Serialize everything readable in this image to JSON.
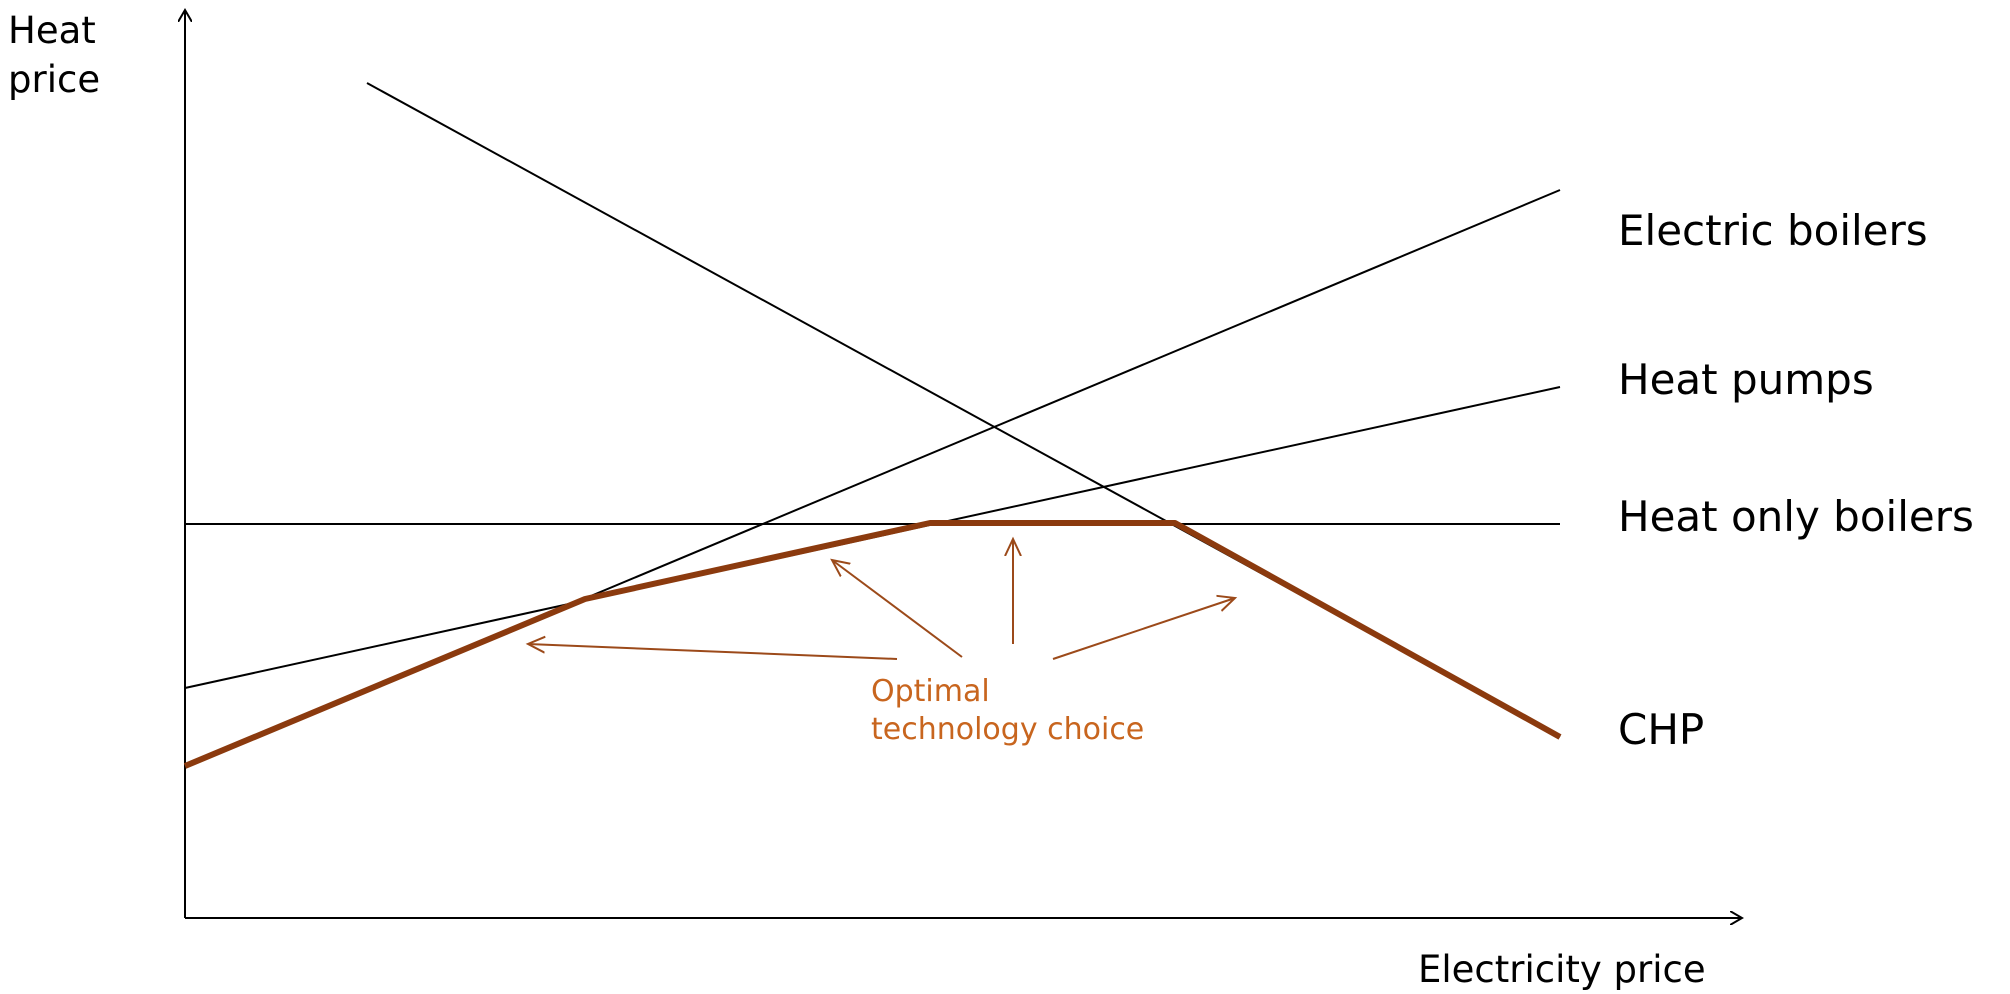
{
  "axes": {
    "y_label_lines": [
      "Heat",
      "price"
    ],
    "x_label": "Electricity price"
  },
  "technologies": [
    {
      "id": "electric-boilers",
      "label": "Electric boilers"
    },
    {
      "id": "heat-pumps",
      "label": "Heat pumps"
    },
    {
      "id": "heat-only-boilers",
      "label": "Heat only boilers"
    },
    {
      "id": "chp",
      "label": "CHP"
    }
  ],
  "annotation": {
    "lines": [
      "Optimal",
      "technology choice"
    ],
    "color": "#c8651e"
  },
  "colors": {
    "line": "#000000",
    "optimal_envelope": "#8b3a0e",
    "arrows": "#9c4a1a"
  }
}
